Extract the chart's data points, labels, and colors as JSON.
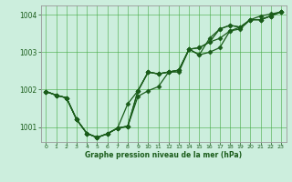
{
  "xlabel": "Graphe pression niveau de la mer (hPa)",
  "bg_color": "#cceedd",
  "grid_color": "#44aa44",
  "line_color": "#1a5c1a",
  "marker": "D",
  "markersize": 2.5,
  "linewidth": 0.9,
  "xlim": [
    -0.5,
    23.5
  ],
  "ylim": [
    1000.6,
    1004.25
  ],
  "yticks": [
    1001,
    1002,
    1003,
    1004
  ],
  "xticks": [
    0,
    1,
    2,
    3,
    4,
    5,
    6,
    7,
    8,
    9,
    10,
    11,
    12,
    13,
    14,
    15,
    16,
    17,
    18,
    19,
    20,
    21,
    22,
    23
  ],
  "series": [
    [
      1001.95,
      1001.85,
      1001.78,
      1001.2,
      1000.83,
      1000.72,
      1000.82,
      1000.97,
      1001.02,
      1001.82,
      1001.97,
      1002.08,
      1002.47,
      1002.47,
      1003.08,
      1002.93,
      1003.0,
      1003.12,
      1003.57,
      1003.62,
      1003.87,
      1003.87,
      1003.97,
      1004.08
    ],
    [
      1001.95,
      1001.85,
      1001.78,
      1001.2,
      1000.83,
      1000.72,
      1000.82,
      1000.97,
      1001.62,
      1001.97,
      1002.47,
      1002.42,
      1002.47,
      1002.52,
      1003.08,
      1003.12,
      1003.27,
      1003.37,
      1003.57,
      1003.67,
      1003.87,
      1003.87,
      1003.97,
      1004.08
    ],
    [
      1001.95,
      1001.85,
      1001.78,
      1001.2,
      1000.83,
      1000.72,
      1000.82,
      1000.97,
      1001.02,
      1001.97,
      1002.47,
      1002.42,
      1002.47,
      1002.52,
      1003.08,
      1002.93,
      1003.37,
      1003.62,
      1003.72,
      1003.67,
      1003.87,
      1003.87,
      1003.97,
      1004.08
    ],
    [
      1001.95,
      1001.85,
      1001.78,
      1001.2,
      1000.83,
      1000.72,
      1000.82,
      1000.97,
      1001.02,
      1001.97,
      1002.47,
      1002.42,
      1002.47,
      1002.52,
      1003.08,
      1003.12,
      1003.27,
      1003.62,
      1003.72,
      1003.67,
      1003.87,
      1003.97,
      1004.02,
      1004.08
    ]
  ]
}
